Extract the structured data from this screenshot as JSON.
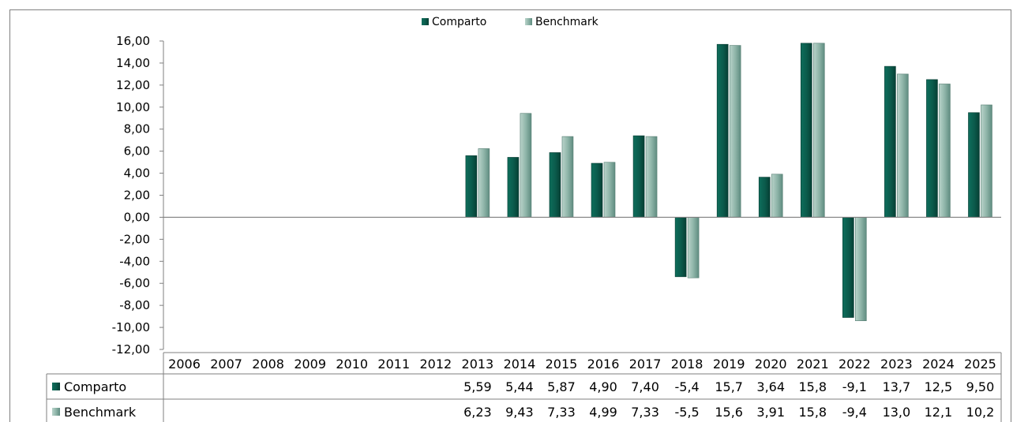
{
  "chart_data": {
    "type": "bar",
    "categories": [
      "2006",
      "2007",
      "2008",
      "2009",
      "2010",
      "2011",
      "2012",
      "2013",
      "2014",
      "2015",
      "2016",
      "2017",
      "2018",
      "2019",
      "2020",
      "2021",
      "2022",
      "2023",
      "2024",
      "2025"
    ],
    "series": [
      {
        "name": "Comparto",
        "color": "#0b5e4f",
        "values": [
          null,
          null,
          null,
          null,
          null,
          null,
          null,
          5.59,
          5.44,
          5.87,
          4.9,
          7.4,
          -5.4,
          15.7,
          3.64,
          15.8,
          -9.1,
          13.7,
          12.5,
          9.5
        ],
        "table_labels": [
          "",
          "",
          "",
          "",
          "",
          "",
          "",
          "5,59",
          "5,44",
          "5,87",
          "4,90",
          "7,40",
          "-5,4",
          "15,7",
          "3,64",
          "15,8",
          "-9,1",
          "13,7",
          "12,5",
          "9,50"
        ]
      },
      {
        "name": "Benchmark",
        "color": "#8fb5a9",
        "values": [
          null,
          null,
          null,
          null,
          null,
          null,
          null,
          6.23,
          9.43,
          7.33,
          4.99,
          7.33,
          -5.5,
          15.6,
          3.91,
          15.8,
          -9.4,
          13.0,
          12.1,
          10.2
        ],
        "table_labels": [
          "",
          "",
          "",
          "",
          "",
          "",
          "",
          "6,23",
          "9,43",
          "7,33",
          "4,99",
          "7,33",
          "-5,5",
          "15,6",
          "3,91",
          "15,8",
          "-9,4",
          "13,0",
          "12,1",
          "10,2"
        ]
      }
    ],
    "ylim": [
      -12,
      16
    ],
    "yticks": [
      "16,00",
      "14,00",
      "12,00",
      "10,00",
      "8,00",
      "6,00",
      "4,00",
      "2,00",
      "0,00",
      "-2,00",
      "-4,00",
      "-6,00",
      "-8,00",
      "-10,00",
      "-12,00"
    ],
    "legend_position": "top",
    "data_table": true,
    "grid": false
  }
}
